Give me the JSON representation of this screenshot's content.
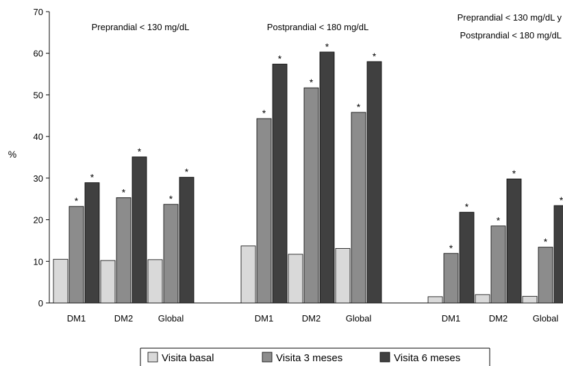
{
  "chart_data": {
    "type": "bar",
    "ylabel": "%",
    "ylim": [
      0,
      70
    ],
    "yticks": [
      0,
      10,
      20,
      30,
      40,
      50,
      60,
      70
    ],
    "grid": false,
    "legend_position": "bottom",
    "asterisk": "*",
    "series": [
      {
        "name": "Visita basal",
        "color": "#d9d9d9"
      },
      {
        "name": "Visita 3 meses",
        "color": "#8c8c8c"
      },
      {
        "name": "Visita 6 meses",
        "color": "#404040"
      }
    ],
    "groups": [
      {
        "title_lines": [
          "Preprandial < 130 mg/dL"
        ],
        "categories": [
          "DM1",
          "DM2",
          "Global"
        ],
        "values": [
          [
            10.5,
            23.2,
            28.9
          ],
          [
            10.2,
            25.3,
            35.1
          ],
          [
            10.4,
            23.7,
            30.2
          ]
        ],
        "marked": [
          [
            false,
            true,
            true
          ],
          [
            false,
            true,
            true
          ],
          [
            false,
            true,
            true
          ]
        ]
      },
      {
        "title_lines": [
          "Postprandial < 180 mg/dL"
        ],
        "categories": [
          "DM1",
          "DM2",
          "Global"
        ],
        "values": [
          [
            13.7,
            44.3,
            57.4
          ],
          [
            11.7,
            51.7,
            60.3
          ],
          [
            13.1,
            45.8,
            58.0
          ]
        ],
        "marked": [
          [
            false,
            true,
            true
          ],
          [
            false,
            true,
            true
          ],
          [
            false,
            true,
            true
          ]
        ]
      },
      {
        "title_lines": [
          "Preprandial < 130 mg/dL y",
          "Postprandial < 180 mg/dL"
        ],
        "categories": [
          "DM1",
          "DM2",
          "Global"
        ],
        "values": [
          [
            1.5,
            11.9,
            21.8
          ],
          [
            2.0,
            18.5,
            29.8
          ],
          [
            1.6,
            13.4,
            23.4
          ]
        ],
        "marked": [
          [
            false,
            true,
            true
          ],
          [
            false,
            true,
            true
          ],
          [
            false,
            true,
            true
          ]
        ]
      }
    ]
  }
}
